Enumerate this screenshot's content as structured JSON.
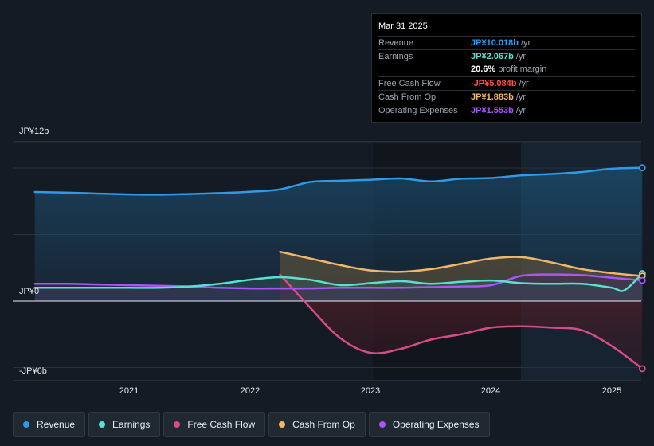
{
  "tooltip": {
    "date": "Mar 31 2025",
    "rows": [
      {
        "label": "Revenue",
        "value": "JP¥10.018b",
        "unit": "/yr",
        "color": "#2f9ae8"
      },
      {
        "label": "Earnings",
        "value": "JP¥2.067b",
        "unit": "/yr",
        "color": "#58e1cf"
      },
      {
        "label": "",
        "value": "20.6%",
        "unit": "profit margin",
        "color": "#ffffff"
      },
      {
        "label": "Free Cash Flow",
        "value": "-JP¥5.084b",
        "unit": "/yr",
        "color": "#ff4d4d"
      },
      {
        "label": "Cash From Op",
        "value": "JP¥1.883b",
        "unit": "/yr",
        "color": "#f2b766"
      },
      {
        "label": "Operating Expenses",
        "value": "JP¥1.553b",
        "unit": "/yr",
        "color": "#a955f7"
      }
    ]
  },
  "legend": [
    {
      "label": "Revenue",
      "color": "#2f9ae8"
    },
    {
      "label": "Earnings",
      "color": "#58e1cf"
    },
    {
      "label": "Free Cash Flow",
      "color": "#d94b87"
    },
    {
      "label": "Cash From Op",
      "color": "#f2b766"
    },
    {
      "label": "Operating Expenses",
      "color": "#a955f7"
    }
  ],
  "chart_data": {
    "type": "area",
    "ylim": [
      -6,
      12
    ],
    "y_tick_labels": [
      "JP¥12b",
      "JP¥0",
      "-JP¥6b"
    ],
    "x_tick_labels": [
      "2021",
      "2022",
      "2023",
      "2024",
      "2025"
    ],
    "x_ticks": [
      2021,
      2022,
      2023,
      2024,
      2025
    ],
    "xlim": [
      2020.0,
      2025.25
    ],
    "unit": "JP¥ billions",
    "series": [
      {
        "name": "Revenue",
        "color": "#2f9ae8",
        "x": [
          2020.22,
          2020.5,
          2020.75,
          2021.0,
          2021.25,
          2021.5,
          2021.75,
          2022.0,
          2022.25,
          2022.5,
          2022.75,
          2023.0,
          2023.25,
          2023.5,
          2023.75,
          2024.0,
          2024.25,
          2024.5,
          2024.75,
          2025.0,
          2025.25
        ],
        "y": [
          8.2,
          8.15,
          8.08,
          8.02,
          8.0,
          8.05,
          8.12,
          8.22,
          8.4,
          8.95,
          9.05,
          9.12,
          9.22,
          9.0,
          9.2,
          9.25,
          9.45,
          9.55,
          9.7,
          9.95,
          10.018
        ]
      },
      {
        "name": "Earnings",
        "color": "#58e1cf",
        "x": [
          2020.22,
          2020.5,
          2020.75,
          2021.0,
          2021.25,
          2021.5,
          2021.75,
          2022.0,
          2022.25,
          2022.5,
          2022.75,
          2023.0,
          2023.25,
          2023.5,
          2023.75,
          2024.0,
          2024.25,
          2024.5,
          2024.75,
          2025.0,
          2025.1,
          2025.25
        ],
        "y": [
          1.0,
          1.0,
          1.0,
          1.0,
          1.0,
          1.1,
          1.3,
          1.6,
          1.8,
          1.6,
          1.2,
          1.35,
          1.5,
          1.3,
          1.45,
          1.55,
          1.35,
          1.3,
          1.3,
          1.0,
          0.8,
          2.067
        ]
      },
      {
        "name": "Free Cash Flow",
        "color": "#d94b87",
        "x": [
          2022.25,
          2022.5,
          2022.75,
          2023.0,
          2023.25,
          2023.5,
          2023.75,
          2024.0,
          2024.25,
          2024.5,
          2024.75,
          2025.0,
          2025.25
        ],
        "y": [
          2.0,
          -0.5,
          -2.8,
          -3.9,
          -3.6,
          -2.9,
          -2.5,
          -2.0,
          -1.9,
          -2.0,
          -2.2,
          -3.4,
          -5.084
        ]
      },
      {
        "name": "Cash From Op",
        "color": "#f2b766",
        "x": [
          2022.25,
          2022.5,
          2022.75,
          2023.0,
          2023.25,
          2023.5,
          2023.75,
          2024.0,
          2024.25,
          2024.5,
          2024.75,
          2025.0,
          2025.25
        ],
        "y": [
          3.7,
          3.2,
          2.7,
          2.3,
          2.2,
          2.4,
          2.8,
          3.2,
          3.3,
          2.9,
          2.4,
          2.1,
          1.883
        ]
      },
      {
        "name": "Operating Expenses",
        "color": "#a955f7",
        "x": [
          2020.22,
          2020.5,
          2020.75,
          2021.0,
          2021.25,
          2021.5,
          2021.75,
          2022.0,
          2022.25,
          2022.5,
          2022.75,
          2023.0,
          2023.25,
          2023.5,
          2023.75,
          2024.0,
          2024.25,
          2024.5,
          2024.75,
          2025.0,
          2025.25
        ],
        "y": [
          1.3,
          1.3,
          1.25,
          1.2,
          1.15,
          1.1,
          1.0,
          0.95,
          0.95,
          0.95,
          1.0,
          1.0,
          1.0,
          1.05,
          1.1,
          1.2,
          1.9,
          2.0,
          1.95,
          1.75,
          1.553
        ]
      }
    ]
  }
}
